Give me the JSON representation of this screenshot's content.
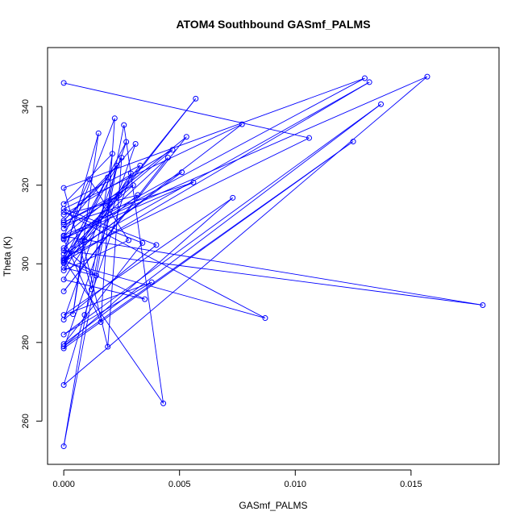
{
  "chart_data": {
    "type": "scatter",
    "title": "ATOM4 Southbound GASmf_PALMS",
    "xlabel": "GASmf_PALMS",
    "ylabel": "Theta (K)",
    "xlim": [
      -0.0007,
      0.0188
    ],
    "ylim": [
      249,
      355
    ],
    "xticks": [
      0.0,
      0.005,
      0.01,
      0.015
    ],
    "xtick_labels": [
      "0.000",
      "0.005",
      "0.010",
      "0.015"
    ],
    "yticks": [
      260,
      280,
      300,
      320,
      340
    ],
    "ytick_labels": [
      "260",
      "280",
      "300",
      "320",
      "340"
    ],
    "grid": false,
    "legend": "none",
    "color": "#0000ff",
    "series": [
      {
        "connected": true,
        "points": [
          [
            0.0,
            346.0
          ],
          [
            0.0106,
            332.0
          ],
          [
            0.0,
            301.5
          ],
          [
            0.0015,
            333.2
          ],
          [
            0.0004,
            287.2
          ],
          [
            0.0009,
            306.0
          ],
          [
            0.0057,
            342.0
          ],
          [
            0.0,
            300.2
          ],
          [
            0.0025,
            327.0
          ],
          [
            0.0019,
            278.9
          ],
          [
            0.0008,
            305.8
          ],
          [
            0.0032,
            317.5
          ],
          [
            0.0,
            312.5
          ],
          [
            0.0047,
            329.0
          ],
          [
            0.0018,
            314.8
          ],
          [
            0.0,
            298.3
          ],
          [
            0.0028,
            306.0
          ],
          [
            0.0011,
            321.5
          ],
          [
            0.0,
            307.0
          ],
          [
            0.0181,
            289.5
          ],
          [
            0.0,
            303.4
          ],
          [
            0.0022,
            337.0
          ],
          [
            0.0016,
            285.2
          ],
          [
            0.0,
            306.2
          ],
          [
            0.013,
            347.2
          ],
          [
            0.0,
            319.3
          ],
          [
            0.0012,
            293.5
          ],
          [
            0.0026,
            335.3
          ],
          [
            0.0043,
            264.5
          ],
          [
            0.0,
            301.0
          ],
          [
            0.0035,
            291.0
          ],
          [
            0.0,
            296.0
          ],
          [
            0.0029,
            323.0
          ],
          [
            0.0009,
            287.0
          ],
          [
            0.0,
            269.2
          ],
          [
            0.0157,
            347.6
          ],
          [
            0.0,
            307.2
          ],
          [
            0.0053,
            332.3
          ],
          [
            0.0,
            293.0
          ],
          [
            0.0045,
            327.0
          ],
          [
            0.0,
            302.5
          ],
          [
            0.0132,
            346.2
          ],
          [
            0.0,
            300.5
          ],
          [
            0.0087,
            286.2
          ],
          [
            0.0,
            313.2
          ],
          [
            0.0034,
            305.3
          ],
          [
            0.0,
            279.6
          ],
          [
            0.0137,
            340.6
          ],
          [
            0.0,
            282.0
          ],
          [
            0.0038,
            295.3
          ],
          [
            0.0,
            287.0
          ],
          [
            0.0073,
            316.8
          ],
          [
            0.0,
            279.0
          ],
          [
            0.0125,
            331.1
          ],
          [
            0.0,
            278.5
          ],
          [
            0.0031,
            330.5
          ],
          [
            0.0,
            309.0
          ],
          [
            0.0024,
            317.5
          ],
          [
            0.0,
            310.5
          ],
          [
            0.003,
            320.0
          ],
          [
            0.0,
            304.0
          ],
          [
            0.0014,
            297.0
          ],
          [
            0.0,
            299.0
          ],
          [
            0.0019,
            322.0
          ],
          [
            0.0,
            311.0
          ],
          [
            0.0023,
            325.0
          ],
          [
            0.0,
            253.6
          ],
          [
            0.0021,
            328.0
          ],
          [
            0.0,
            315.2
          ],
          [
            0.0033,
            325.0
          ],
          [
            0.0,
            300.8
          ],
          [
            0.0077,
            335.5
          ],
          [
            0.0,
            314.0
          ],
          [
            0.004,
            304.8
          ],
          [
            0.0,
            285.8
          ],
          [
            0.0027,
            331.0
          ],
          [
            0.0,
            301.0
          ],
          [
            0.0051,
            323.3
          ],
          [
            0.0,
            306.5
          ],
          [
            0.0056,
            320.7
          ],
          [
            0.0,
            310.0
          ]
        ]
      }
    ]
  }
}
